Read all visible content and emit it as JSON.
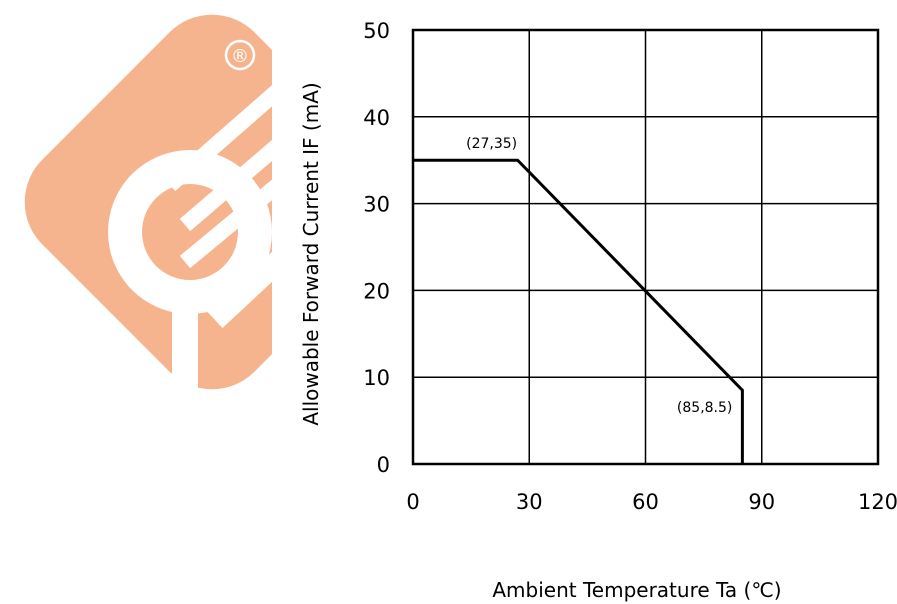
{
  "chart_data": {
    "type": "line",
    "title": "",
    "xlabel": "Ambient Temperature Ta (℃)",
    "ylabel": "Allowable Forward Current IF (mA)",
    "xlim": [
      0,
      120
    ],
    "ylim": [
      0,
      50
    ],
    "xticks": [
      0,
      30,
      60,
      90,
      120
    ],
    "yticks": [
      0,
      10,
      20,
      30,
      40,
      50
    ],
    "xtick_labels": [
      "0",
      "30",
      "60",
      "90",
      "120"
    ],
    "ytick_labels": [
      "0",
      "10",
      "20",
      "30",
      "40",
      "50"
    ],
    "grid": true,
    "series": [
      {
        "x": [
          0,
          27,
          85,
          85
        ],
        "y": [
          35,
          35,
          8.5,
          0
        ]
      }
    ],
    "annotations": [
      {
        "text": "(27,35)",
        "x": 27,
        "y": 35
      },
      {
        "text": "(85,8.5)",
        "x": 85,
        "y": 8.5
      }
    ],
    "colors": {
      "line": "#000000",
      "grid": "#000000"
    }
  },
  "watermark": {
    "registered_mark": "®",
    "color": "#f6b48e"
  }
}
